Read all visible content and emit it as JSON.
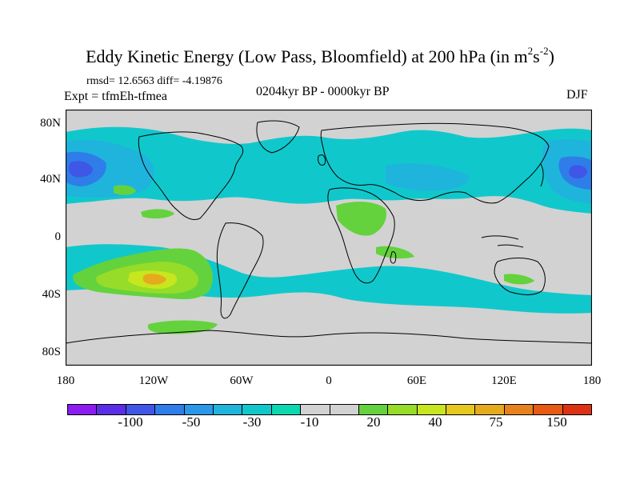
{
  "title": {
    "main": "Eddy Kinetic Energy (Low Pass, Bloomfield) at 200 hPa (in m",
    "sup1": "2",
    "mid": "s",
    "sup2": "-2",
    "end": ")"
  },
  "stats": "rmsd= 12.6563  diff= -4.19876",
  "expt": "Expt = tfmEh-tfmea",
  "period": "0204kyr BP - 0000kyr BP",
  "season": "DJF",
  "axes": {
    "lat_labels": [
      "80N",
      "40N",
      "0",
      "40S",
      "80S"
    ],
    "lon_labels": [
      "180",
      "120W",
      "60W",
      "0",
      "60E",
      "120E",
      "180"
    ]
  },
  "colorbar": {
    "colors": [
      "#8c1cf0",
      "#5a2ee6",
      "#3f56e6",
      "#2f7de8",
      "#2a98e6",
      "#1fb4dc",
      "#10c8cc",
      "#0cd8b0",
      "#d2d2d2",
      "#d2d2d2",
      "#64d23c",
      "#96dc28",
      "#c8e61e",
      "#e6c81e",
      "#e6aa1e",
      "#e6821e",
      "#e65a14",
      "#dc3214"
    ],
    "labels": [
      "-100",
      "-50",
      "-30",
      "-10",
      "20",
      "40",
      "75",
      "150"
    ]
  },
  "map_colors": {
    "ocean": "#d2d2d2",
    "neg_light": "#10c8cc",
    "neg_mid": "#1fb4dc",
    "neg_dark": "#2f7de8",
    "neg_darker": "#3f56e6",
    "pos_light": "#64d23c",
    "pos_mid": "#96dc28",
    "pos_high": "#c8e61e",
    "pos_peak": "#e6aa1e"
  }
}
